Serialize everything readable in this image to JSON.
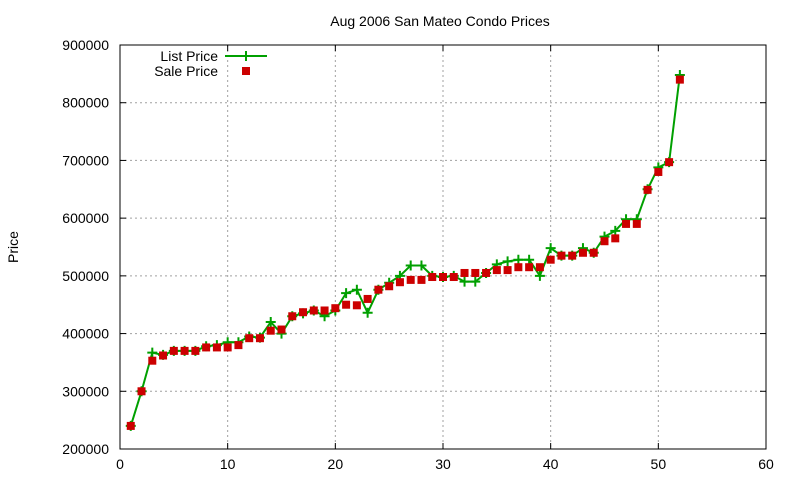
{
  "chart_data": {
    "type": "line",
    "title": "Aug 2006 San Mateo Condo Prices",
    "xlabel": "",
    "ylabel": "Price",
    "xlim": [
      0,
      60
    ],
    "ylim": [
      200000,
      900000
    ],
    "x_ticks": [
      0,
      10,
      20,
      30,
      40,
      50,
      60
    ],
    "y_ticks": [
      200000,
      300000,
      400000,
      500000,
      600000,
      700000,
      800000,
      900000
    ],
    "grid": true,
    "legend_position": "top-left",
    "colors": {
      "list": "#00a000",
      "sale": "#cc0000"
    },
    "series": [
      {
        "name": "List Price",
        "style": "line-plus",
        "x": [
          1,
          2,
          3,
          4,
          5,
          6,
          7,
          8,
          9,
          10,
          11,
          12,
          13,
          14,
          15,
          16,
          17,
          18,
          19,
          20,
          21,
          22,
          23,
          24,
          25,
          26,
          27,
          28,
          29,
          30,
          31,
          32,
          33,
          34,
          35,
          36,
          37,
          38,
          39,
          40,
          41,
          42,
          43,
          44,
          45,
          46,
          47,
          48,
          49,
          50,
          51,
          52
        ],
        "values": [
          240000,
          300000,
          367000,
          363000,
          370000,
          370000,
          370000,
          378000,
          380000,
          385000,
          385000,
          395000,
          393000,
          420000,
          400000,
          430000,
          435000,
          440000,
          430000,
          440000,
          470000,
          476000,
          436000,
          476000,
          488000,
          500000,
          518000,
          518000,
          500000,
          498000,
          500000,
          490000,
          490000,
          505000,
          520000,
          525000,
          528000,
          528000,
          500000,
          548000,
          535000,
          535000,
          548000,
          540000,
          568000,
          578000,
          598000,
          598000,
          650000,
          688000,
          697000,
          848000
        ]
      },
      {
        "name": "Sale Price",
        "style": "square-points",
        "x": [
          1,
          2,
          3,
          4,
          5,
          6,
          7,
          8,
          9,
          10,
          11,
          12,
          13,
          14,
          15,
          16,
          17,
          18,
          19,
          20,
          21,
          22,
          23,
          24,
          25,
          26,
          27,
          28,
          29,
          30,
          31,
          32,
          33,
          34,
          35,
          36,
          37,
          38,
          39,
          40,
          41,
          42,
          43,
          44,
          45,
          46,
          47,
          48,
          49,
          50,
          51,
          52
        ],
        "values": [
          240000,
          300000,
          353000,
          362000,
          370000,
          370000,
          370000,
          376000,
          376000,
          376000,
          380000,
          392000,
          392000,
          405000,
          407000,
          430000,
          437000,
          440000,
          440000,
          444000,
          450000,
          449000,
          460000,
          476000,
          482000,
          489000,
          493000,
          493000,
          498000,
          498000,
          498000,
          505000,
          505000,
          505000,
          510000,
          510000,
          515000,
          515000,
          515000,
          528000,
          535000,
          535000,
          540000,
          540000,
          560000,
          565000,
          590000,
          590000,
          649000,
          680000,
          697000,
          840000
        ]
      }
    ]
  }
}
